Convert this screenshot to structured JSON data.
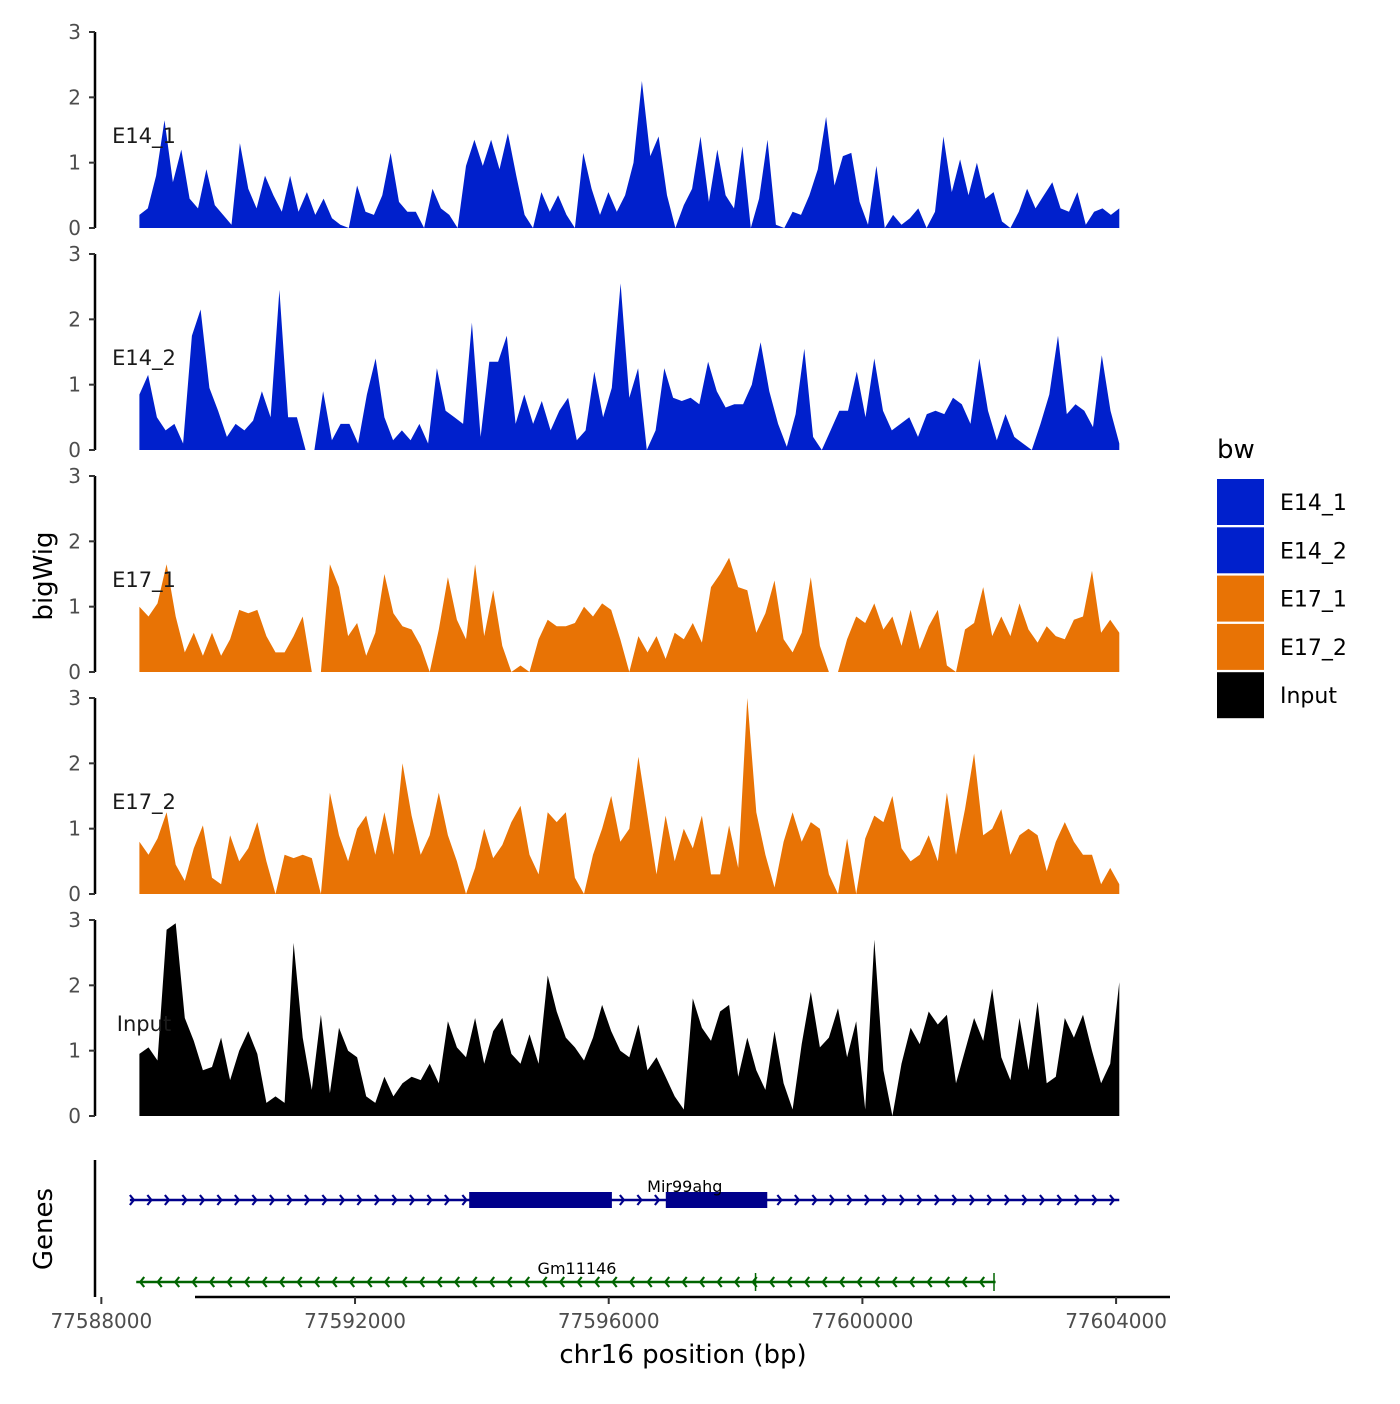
{
  "chart_data": {
    "type": "area",
    "title": "",
    "ylabel": "bigWig",
    "xlabel": "chr16 position (bp)",
    "ylim": [
      0,
      3
    ],
    "y_ticks": [
      0,
      1,
      2,
      3
    ],
    "x_range": [
      77587900,
      77604850
    ],
    "x_ticks": [
      {
        "value": 77588000,
        "label": "77588000"
      },
      {
        "value": 77592000,
        "label": "77592000"
      },
      {
        "value": 77596000,
        "label": "77596000"
      },
      {
        "value": 77600000,
        "label": "77600000"
      },
      {
        "value": 77604000,
        "label": "77604000"
      }
    ],
    "track_x_range": [
      77588600,
      77604050
    ],
    "legend": {
      "title": "bw",
      "placement": "right",
      "items": [
        {
          "label": "E14_1",
          "color": "#0020CC"
        },
        {
          "label": "E14_2",
          "color": "#0020CC"
        },
        {
          "label": "E17_1",
          "color": "#E87305"
        },
        {
          "label": "E17_2",
          "color": "#E87305"
        },
        {
          "label": "Input",
          "color": "#000000"
        }
      ]
    },
    "series": [
      {
        "name": "E14_1",
        "color": "#0020CC",
        "values": [
          0.2,
          0.3,
          0.8,
          1.65,
          0.7,
          1.2,
          0.45,
          0.3,
          0.9,
          0.35,
          0.2,
          0.05,
          1.3,
          0.6,
          0.3,
          0.8,
          0.5,
          0.25,
          0.8,
          0.25,
          0.55,
          0.2,
          0.45,
          0.15,
          0.05,
          0.0,
          0.65,
          0.25,
          0.2,
          0.5,
          1.15,
          0.4,
          0.25,
          0.25,
          0.0,
          0.6,
          0.3,
          0.2,
          0.0,
          0.95,
          1.35,
          0.95,
          1.35,
          0.9,
          1.45,
          0.8,
          0.2,
          0.0,
          0.55,
          0.25,
          0.5,
          0.2,
          0.0,
          1.15,
          0.6,
          0.2,
          0.55,
          0.25,
          0.5,
          1.0,
          2.25,
          1.1,
          1.4,
          0.5,
          0.0,
          0.35,
          0.6,
          1.4,
          0.4,
          1.2,
          0.5,
          0.3,
          1.25,
          0.0,
          0.45,
          1.35,
          0.05,
          0.0,
          0.25,
          0.2,
          0.5,
          0.9,
          1.7,
          0.65,
          1.1,
          1.15,
          0.4,
          0.05,
          0.95,
          0.0,
          0.2,
          0.05,
          0.15,
          0.3,
          0.0,
          0.25,
          1.4,
          0.55,
          1.05,
          0.5,
          1.0,
          0.45,
          0.55,
          0.1,
          0.0,
          0.25,
          0.6,
          0.3,
          0.5,
          0.7,
          0.3,
          0.25,
          0.55,
          0.05,
          0.25,
          0.3,
          0.2,
          0.3
        ]
      },
      {
        "name": "E14_2",
        "color": "#0020CC",
        "values": [
          0.85,
          1.15,
          0.5,
          0.3,
          0.4,
          0.1,
          1.75,
          2.15,
          0.95,
          0.6,
          0.2,
          0.4,
          0.3,
          0.45,
          0.9,
          0.5,
          2.45,
          0.5,
          0.5,
          0.0,
          0.0,
          0.9,
          0.15,
          0.4,
          0.4,
          0.1,
          0.85,
          1.4,
          0.5,
          0.15,
          0.3,
          0.15,
          0.4,
          0.1,
          1.25,
          0.6,
          0.5,
          0.4,
          1.95,
          0.2,
          1.35,
          1.35,
          1.75,
          0.4,
          0.85,
          0.4,
          0.75,
          0.3,
          0.6,
          0.8,
          0.15,
          0.3,
          1.2,
          0.5,
          0.95,
          2.55,
          0.8,
          1.25,
          0.0,
          0.3,
          1.25,
          0.8,
          0.75,
          0.8,
          0.7,
          1.35,
          0.9,
          0.65,
          0.7,
          0.7,
          1.0,
          1.65,
          0.9,
          0.4,
          0.05,
          0.55,
          1.55,
          0.2,
          0.0,
          0.3,
          0.6,
          0.6,
          1.2,
          0.5,
          1.4,
          0.6,
          0.3,
          0.4,
          0.5,
          0.2,
          0.55,
          0.6,
          0.55,
          0.8,
          0.7,
          0.4,
          1.4,
          0.6,
          0.15,
          0.55,
          0.2,
          0.1,
          0.0,
          0.4,
          0.85,
          1.75,
          0.55,
          0.7,
          0.6,
          0.35,
          1.45,
          0.6,
          0.1
        ]
      },
      {
        "name": "E17_1",
        "color": "#E87305",
        "values": [
          1.0,
          0.85,
          1.05,
          1.65,
          0.85,
          0.3,
          0.6,
          0.25,
          0.6,
          0.25,
          0.5,
          0.95,
          0.9,
          0.95,
          0.55,
          0.3,
          0.3,
          0.55,
          0.85,
          0.0,
          0.0,
          1.65,
          1.3,
          0.55,
          0.75,
          0.25,
          0.6,
          1.5,
          0.9,
          0.7,
          0.65,
          0.4,
          0.0,
          0.65,
          1.45,
          0.8,
          0.5,
          1.65,
          0.55,
          1.25,
          0.4,
          0.0,
          0.1,
          0.0,
          0.5,
          0.8,
          0.7,
          0.7,
          0.75,
          1.0,
          0.85,
          1.05,
          0.95,
          0.5,
          0.0,
          0.55,
          0.3,
          0.55,
          0.2,
          0.6,
          0.5,
          0.75,
          0.45,
          1.3,
          1.5,
          1.75,
          1.3,
          1.25,
          0.6,
          0.9,
          1.4,
          0.5,
          0.3,
          0.6,
          1.45,
          0.4,
          0.0,
          0.0,
          0.5,
          0.85,
          0.75,
          1.05,
          0.65,
          0.85,
          0.4,
          0.95,
          0.35,
          0.7,
          0.95,
          0.1,
          0.0,
          0.65,
          0.75,
          1.3,
          0.55,
          0.85,
          0.55,
          1.05,
          0.65,
          0.45,
          0.7,
          0.55,
          0.5,
          0.8,
          0.85,
          1.55,
          0.6,
          0.8,
          0.6
        ]
      },
      {
        "name": "E17_2",
        "color": "#E87305",
        "values": [
          0.8,
          0.6,
          0.85,
          1.25,
          0.45,
          0.2,
          0.7,
          1.05,
          0.25,
          0.15,
          0.9,
          0.5,
          0.7,
          1.1,
          0.5,
          0.0,
          0.6,
          0.55,
          0.6,
          0.55,
          0.0,
          1.55,
          0.9,
          0.5,
          1.0,
          1.2,
          0.6,
          1.25,
          0.6,
          2.0,
          1.2,
          0.6,
          0.9,
          1.55,
          0.9,
          0.5,
          0.0,
          0.4,
          1.0,
          0.55,
          0.75,
          1.1,
          1.35,
          0.6,
          0.3,
          1.25,
          1.1,
          1.25,
          0.25,
          0.0,
          0.6,
          1.0,
          1.5,
          0.8,
          1.0,
          2.1,
          1.2,
          0.3,
          1.2,
          0.5,
          1.0,
          0.7,
          1.2,
          0.3,
          0.3,
          1.05,
          0.4,
          3.0,
          1.25,
          0.6,
          0.1,
          0.8,
          1.25,
          0.8,
          1.1,
          1.0,
          0.3,
          0.0,
          0.85,
          0.0,
          0.85,
          1.2,
          1.1,
          1.5,
          0.7,
          0.5,
          0.6,
          0.9,
          0.5,
          1.55,
          0.6,
          1.3,
          2.15,
          0.9,
          1.0,
          1.3,
          0.6,
          0.9,
          1.0,
          0.9,
          0.35,
          0.8,
          1.1,
          0.8,
          0.6,
          0.6,
          0.15,
          0.4,
          0.15
        ]
      },
      {
        "name": "Input",
        "color": "#000000",
        "values": [
          0.95,
          1.05,
          0.85,
          2.85,
          2.95,
          1.5,
          1.15,
          0.7,
          0.75,
          1.2,
          0.55,
          1.0,
          1.3,
          0.95,
          0.2,
          0.3,
          0.2,
          2.65,
          1.2,
          0.4,
          1.55,
          0.35,
          1.35,
          1.0,
          0.9,
          0.3,
          0.2,
          0.6,
          0.3,
          0.5,
          0.6,
          0.55,
          0.8,
          0.5,
          1.45,
          1.05,
          0.9,
          1.5,
          0.8,
          1.3,
          1.5,
          0.95,
          0.8,
          1.25,
          0.8,
          2.15,
          1.6,
          1.2,
          1.05,
          0.85,
          1.2,
          1.7,
          1.3,
          1.0,
          0.9,
          1.4,
          0.7,
          0.9,
          0.6,
          0.3,
          0.1,
          1.8,
          1.35,
          1.15,
          1.6,
          1.7,
          0.6,
          1.2,
          0.7,
          0.4,
          1.3,
          0.5,
          0.1,
          1.1,
          1.9,
          1.05,
          1.2,
          1.65,
          0.9,
          1.45,
          0.1,
          2.7,
          0.7,
          0.0,
          0.8,
          1.35,
          1.1,
          1.6,
          1.4,
          1.55,
          0.5,
          1.0,
          1.5,
          1.15,
          1.95,
          0.9,
          0.55,
          1.5,
          0.7,
          1.75,
          0.5,
          0.6,
          1.5,
          1.2,
          1.55,
          1.0,
          0.5,
          0.8,
          2.05
        ]
      }
    ],
    "genes_track": {
      "label": "Genes",
      "genes": [
        {
          "name": "Mir99ahg",
          "strand": "+",
          "color": "#00008B",
          "start": 77588450,
          "end": 77604050,
          "exons": [
            [
              77593800,
              77594500
            ],
            [
              77594400,
              77595000
            ],
            [
              77594950,
              77596050
            ],
            [
              77596900,
              77598500
            ]
          ]
        },
        {
          "name": "Gm11146",
          "strand": "-",
          "color": "#006400",
          "start": 77588550,
          "end": 77602100,
          "exons": [
            [
              77598300,
              77598330
            ],
            [
              77602050,
              77602100
            ]
          ]
        }
      ]
    }
  }
}
